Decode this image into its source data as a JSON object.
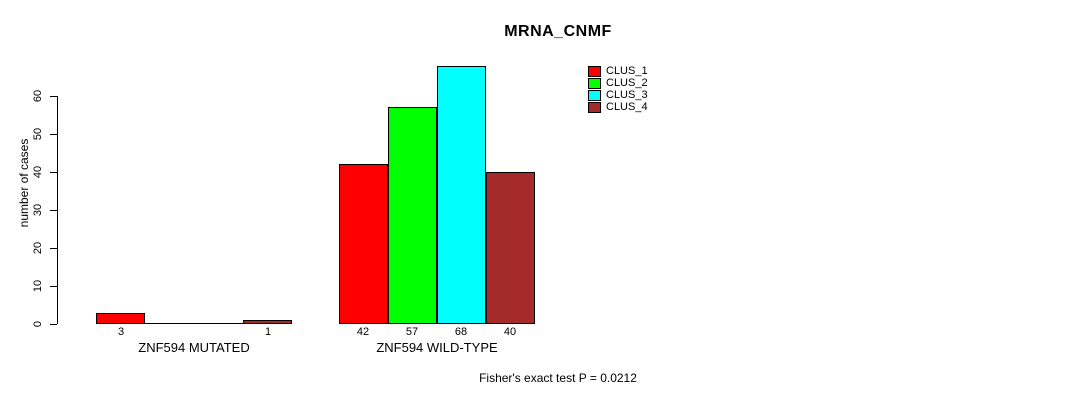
{
  "chart_data": {
    "type": "bar",
    "title": "MRNA_CNMF",
    "ylabel": "number of cases",
    "xlabel": "",
    "ylim": [
      0,
      60
    ],
    "y_ticks": [
      0,
      10,
      20,
      30,
      40,
      50,
      60
    ],
    "grid": false,
    "legend_position": "top-right",
    "categories": [
      "ZNF594 MUTATED",
      "ZNF594 WILD-TYPE"
    ],
    "series": [
      {
        "name": "CLUS_1",
        "color": "#ff0000",
        "values": [
          3,
          42
        ]
      },
      {
        "name": "CLUS_2",
        "color": "#00ff00",
        "values": [
          0,
          57
        ]
      },
      {
        "name": "CLUS_3",
        "color": "#00ffff",
        "values": [
          0,
          68
        ]
      },
      {
        "name": "CLUS_4",
        "color": "#a52a2a",
        "values": [
          1,
          40
        ]
      }
    ],
    "bar_value_labels": [
      [
        "3",
        "",
        "",
        "1"
      ],
      [
        "42",
        "57",
        "68",
        "40"
      ]
    ],
    "footnote": "Fisher's exact test P = 0.0212"
  }
}
